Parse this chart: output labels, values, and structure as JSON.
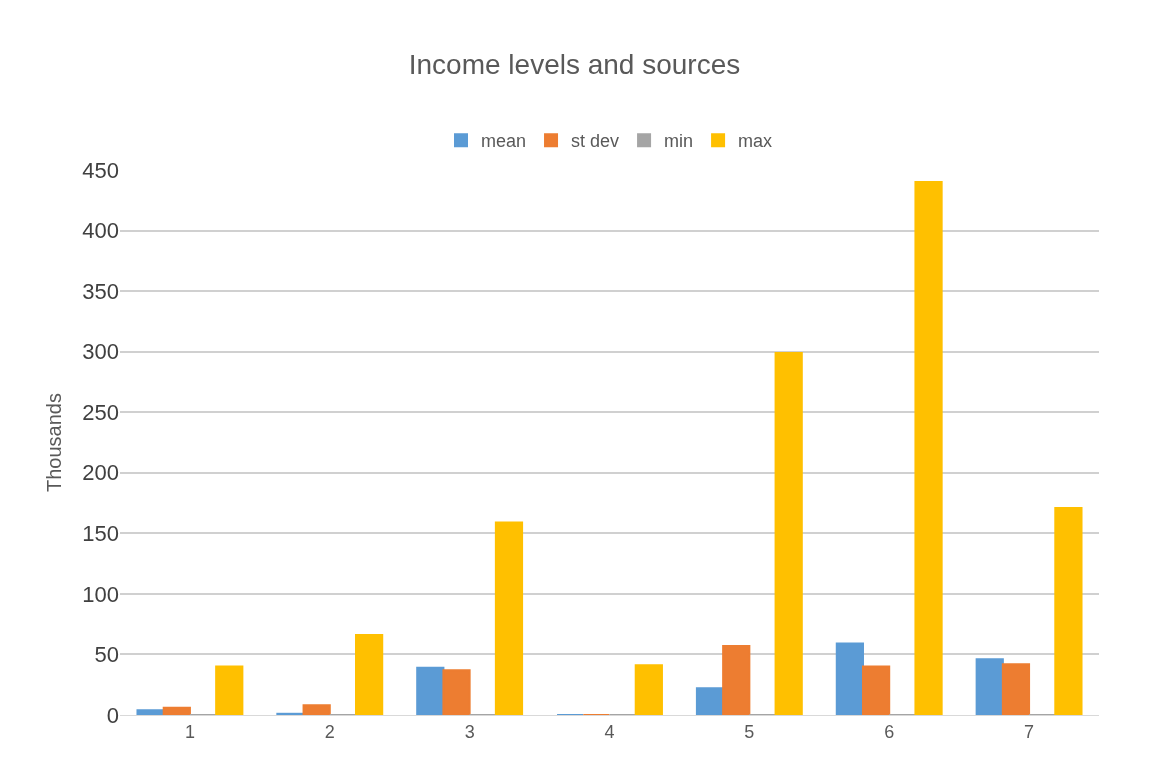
{
  "chart_data": {
    "type": "bar",
    "title": "Income levels and sources",
    "ylabel": "Thousands",
    "categories": [
      "1",
      "2",
      "3",
      "4",
      "5",
      "6",
      "7"
    ],
    "series": [
      {
        "name": "mean",
        "color": "#5b9bd5",
        "values": [
          4,
          1,
          39,
          0,
          22,
          59,
          46
        ]
      },
      {
        "name": "st dev",
        "color": "#ed7d31",
        "values": [
          6,
          8,
          37,
          0,
          57,
          40,
          42
        ]
      },
      {
        "name": "min",
        "color": "#a5a5a5",
        "values": [
          0,
          0,
          0,
          0,
          0,
          0,
          0
        ]
      },
      {
        "name": "max",
        "color": "#ffc000",
        "values": [
          40,
          66,
          159,
          41,
          299,
          440,
          171
        ]
      }
    ],
    "ylim": [
      0,
      450
    ],
    "yticks": [
      0,
      50,
      100,
      150,
      200,
      250,
      300,
      350,
      400,
      450
    ],
    "grid": "y",
    "legend": "top"
  }
}
